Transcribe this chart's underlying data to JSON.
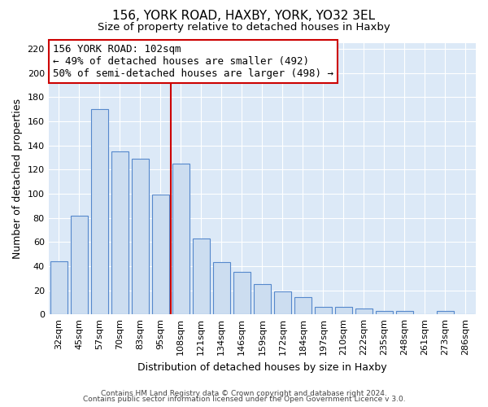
{
  "title": "156, YORK ROAD, HAXBY, YORK, YO32 3EL",
  "subtitle": "Size of property relative to detached houses in Haxby",
  "xlabel": "Distribution of detached houses by size in Haxby",
  "ylabel": "Number of detached properties",
  "footer_lines": [
    "Contains HM Land Registry data © Crown copyright and database right 2024.",
    "Contains public sector information licensed under the Open Government Licence v 3.0."
  ],
  "bar_labels": [
    "32sqm",
    "45sqm",
    "57sqm",
    "70sqm",
    "83sqm",
    "95sqm",
    "108sqm",
    "121sqm",
    "134sqm",
    "146sqm",
    "159sqm",
    "172sqm",
    "184sqm",
    "197sqm",
    "210sqm",
    "222sqm",
    "235sqm",
    "248sqm",
    "261sqm",
    "273sqm",
    "286sqm"
  ],
  "bar_values": [
    44,
    82,
    170,
    135,
    129,
    99,
    125,
    63,
    43,
    35,
    25,
    19,
    14,
    6,
    6,
    5,
    3,
    3,
    0,
    3,
    0
  ],
  "bar_color": "#ccddf0",
  "bar_edge_color": "#5588cc",
  "annotation_line1": "156 YORK ROAD: 102sqm",
  "annotation_line2": "← 49% of detached houses are smaller (492)",
  "annotation_line3": "50% of semi-detached houses are larger (498) →",
  "vline_x_index": 5.5,
  "vline_color": "#cc0000",
  "ylim": [
    0,
    225
  ],
  "yticks": [
    0,
    20,
    40,
    60,
    80,
    100,
    120,
    140,
    160,
    180,
    200,
    220
  ],
  "plot_bg_color": "#dce9f7",
  "background_color": "#ffffff",
  "grid_color": "#ffffff",
  "title_fontsize": 11,
  "subtitle_fontsize": 9.5,
  "axis_label_fontsize": 9,
  "tick_fontsize": 8,
  "annotation_fontsize": 9
}
